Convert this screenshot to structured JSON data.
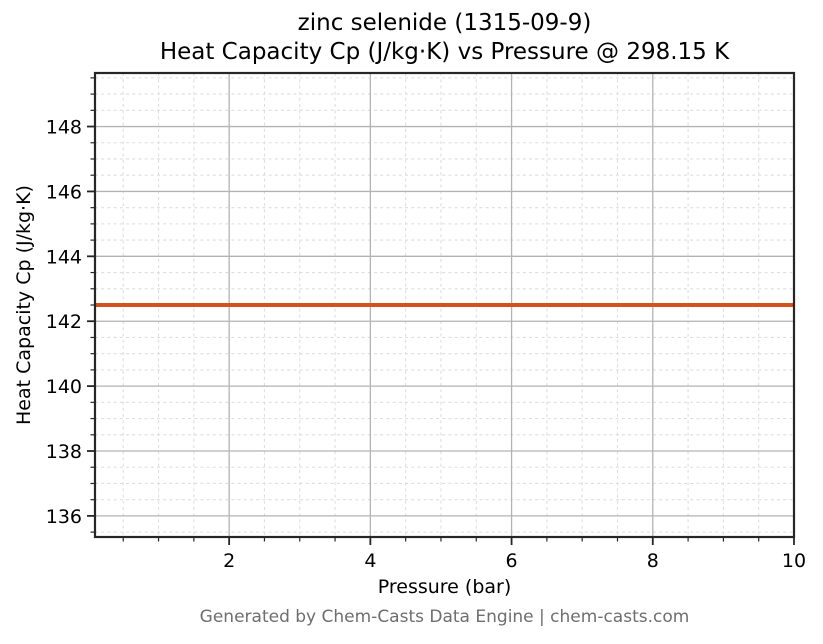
{
  "title": {
    "line1": "zinc selenide (1315-09-9)",
    "line2": "Heat Capacity Cp (J/kg·K) vs Pressure @ 298.15 K"
  },
  "footer": "Generated by Chem-Casts Data Engine | chem-casts.com",
  "chart_data": {
    "type": "line",
    "title": "zinc selenide (1315-09-9) — Heat Capacity Cp (J/kg·K) vs Pressure @ 298.15 K",
    "xlabel": "Pressure (bar)",
    "ylabel": "Heat Capacity Cp (J/kg·K)",
    "xlim": [
      0.1,
      10
    ],
    "ylim": [
      135.35,
      149.65
    ],
    "xticks": [
      2,
      4,
      6,
      8,
      10
    ],
    "yticks": [
      136,
      138,
      140,
      142,
      144,
      146,
      148
    ],
    "x_minor_step": 0.5,
    "y_minor_step": 0.5,
    "grid": {
      "major": true,
      "minor": true,
      "legend": "none"
    },
    "series": [
      {
        "name": "Heat Capacity Cp",
        "x": [
          0.1,
          10
        ],
        "y": [
          142.5,
          142.5
        ],
        "constant_value": 142.5,
        "color": "#d2521e",
        "line_width": 4
      }
    ]
  },
  "colors": {
    "line": "#d2521e",
    "spine": "#262626",
    "tick": "#262626",
    "grid_major": "#b3b3b3",
    "grid_minor": "#dedede",
    "footer_text": "#6e6e6e"
  }
}
